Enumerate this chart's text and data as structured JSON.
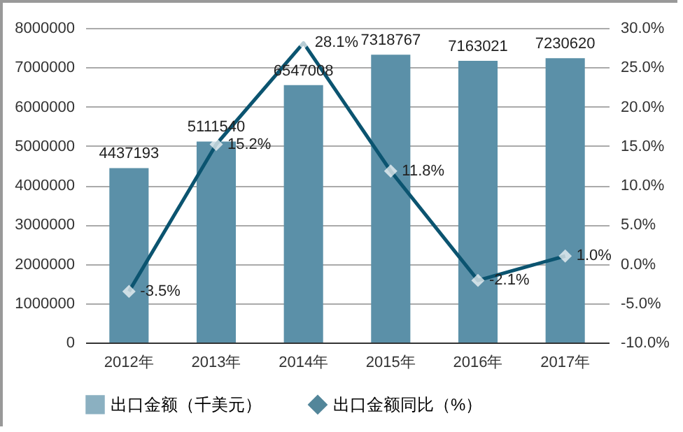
{
  "chart_data": {
    "type": "bar",
    "categories": [
      "2012年",
      "2013年",
      "2014年",
      "2015年",
      "2016年",
      "2017年"
    ],
    "series": [
      {
        "name": "出口金额（千美元）",
        "color": "#5b90a8",
        "values": [
          4437193,
          5111540,
          6547008,
          7318767,
          7163021,
          7230620
        ],
        "value_labels": [
          "4437193",
          "5111540",
          "6547008",
          "7318767",
          "7163021",
          "7230620"
        ]
      },
      {
        "name": "出口金额同比（%）",
        "type": "line",
        "axis": "y2",
        "color": "#0b5470",
        "values": [
          -3.5,
          15.2,
          28.1,
          11.8,
          -2.1,
          1.0
        ],
        "value_labels": [
          "-3.5%",
          "15.2%",
          "28.1%",
          "11.8%",
          "-2.1%",
          "1.0%"
        ]
      }
    ],
    "ylim": [
      0,
      8000000
    ],
    "yticks": [
      0,
      1000000,
      2000000,
      3000000,
      4000000,
      5000000,
      6000000,
      7000000,
      8000000
    ],
    "y2lim": [
      -10,
      30
    ],
    "y2ticks": [
      {
        "value": -10,
        "label": "-10.0%"
      },
      {
        "value": -5,
        "label": "-5.0%"
      },
      {
        "value": 0,
        "label": "0.0%"
      },
      {
        "value": 5,
        "label": "5.0%"
      },
      {
        "value": 10,
        "label": "10.0%"
      },
      {
        "value": 15,
        "label": "15.0%"
      },
      {
        "value": 20,
        "label": "20.0%"
      },
      {
        "value": 25,
        "label": "25.0%"
      },
      {
        "value": 30,
        "label": "30.0%"
      }
    ],
    "grid": "y",
    "legend": "bottom",
    "marker": "diamond",
    "line_style": "solid"
  }
}
